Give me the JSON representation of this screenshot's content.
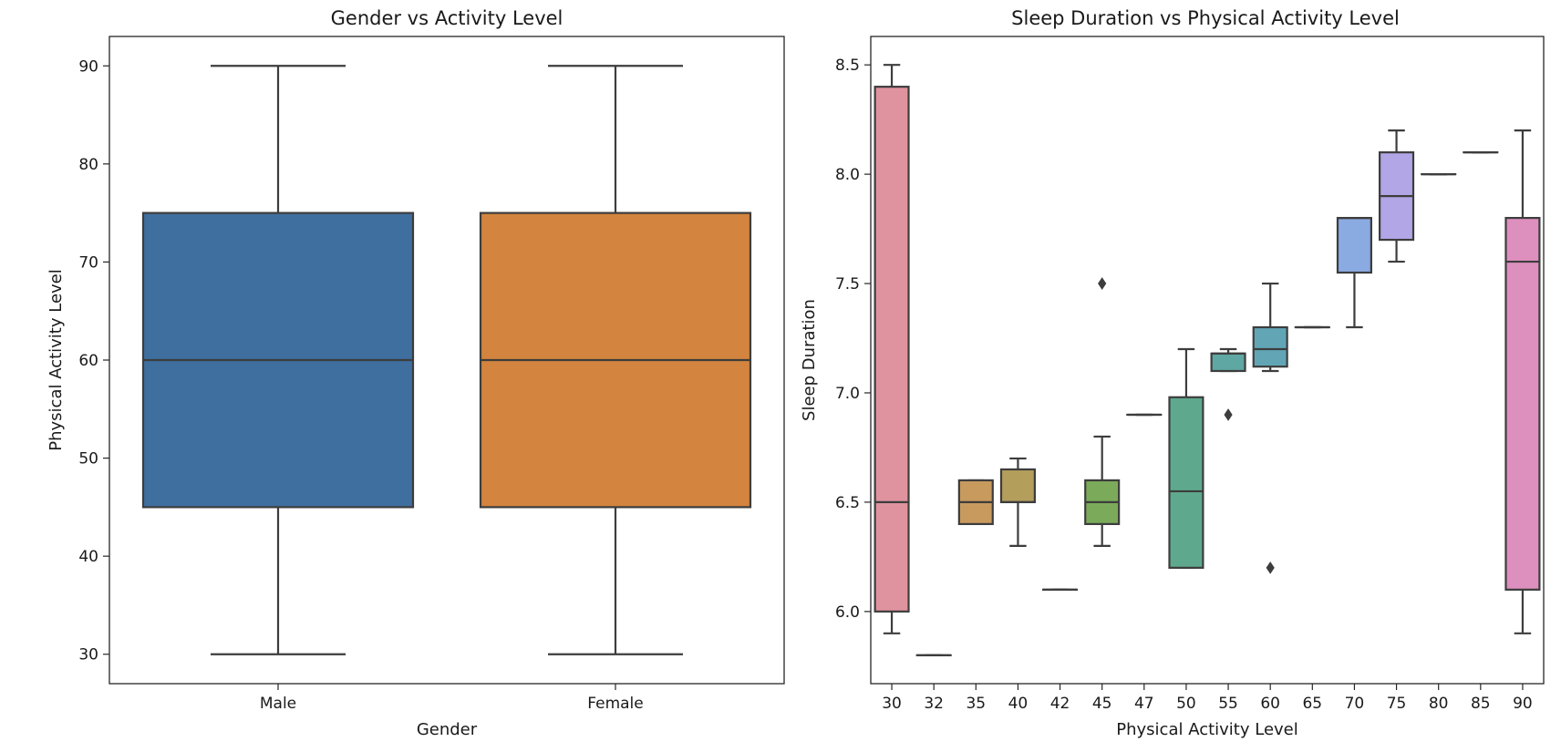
{
  "chart_data": [
    {
      "type": "box",
      "title": "Gender vs Activity Level",
      "xlabel": "Gender",
      "ylabel": "Physical Activity Level",
      "ylim": [
        27,
        93
      ],
      "yticks": [
        30,
        40,
        50,
        60,
        70,
        80,
        90
      ],
      "categories": [
        "Male",
        "Female"
      ],
      "boxes": [
        {
          "category": "Male",
          "whisker_low": 30,
          "q1": 45,
          "median": 60,
          "q3": 75,
          "whisker_high": 90,
          "color": "#3f6f9f",
          "outliers": []
        },
        {
          "category": "Female",
          "whisker_low": 30,
          "q1": 45,
          "median": 60,
          "q3": 75,
          "whisker_high": 90,
          "color": "#d3843e",
          "outliers": []
        }
      ]
    },
    {
      "type": "box",
      "title": "Sleep Duration vs Physical Activity Level",
      "xlabel": "Physical Activity Level",
      "ylabel": "Sleep Duration",
      "ylim": [
        5.67,
        8.63
      ],
      "yticks": [
        "6.0",
        "6.5",
        "7.0",
        "7.5",
        "8.0",
        "8.5"
      ],
      "categories": [
        "30",
        "32",
        "35",
        "40",
        "42",
        "45",
        "47",
        "50",
        "55",
        "60",
        "65",
        "70",
        "75",
        "80",
        "85",
        "90"
      ],
      "boxes": [
        {
          "category": "30",
          "whisker_low": 5.9,
          "q1": 6.0,
          "median": 6.5,
          "q3": 8.4,
          "whisker_high": 8.5,
          "color": "#df939e",
          "outliers": []
        },
        {
          "category": "32",
          "whisker_low": 5.8,
          "q1": 5.8,
          "median": 5.8,
          "q3": 5.8,
          "whisker_high": 5.8,
          "color": "#dc9b7e",
          "outliers": []
        },
        {
          "category": "35",
          "whisker_low": 6.4,
          "q1": 6.4,
          "median": 6.5,
          "q3": 6.6,
          "whisker_high": 6.6,
          "color": "#c89a5d",
          "outliers": []
        },
        {
          "category": "40",
          "whisker_low": 6.3,
          "q1": 6.5,
          "median": 6.5,
          "q3": 6.65,
          "whisker_high": 6.7,
          "color": "#b49e5c",
          "outliers": []
        },
        {
          "category": "42",
          "whisker_low": 6.1,
          "q1": 6.1,
          "median": 6.1,
          "q3": 6.1,
          "whisker_high": 6.1,
          "color": "#9aa55c",
          "outliers": []
        },
        {
          "category": "45",
          "whisker_low": 6.3,
          "q1": 6.4,
          "median": 6.5,
          "q3": 6.6,
          "whisker_high": 6.8,
          "color": "#7bab5a",
          "outliers": [
            7.5
          ]
        },
        {
          "category": "47",
          "whisker_low": 6.9,
          "q1": 6.9,
          "median": 6.9,
          "q3": 6.9,
          "whisker_high": 6.9,
          "color": "#5cab74",
          "outliers": []
        },
        {
          "category": "50",
          "whisker_low": 6.2,
          "q1": 6.2,
          "median": 6.55,
          "q3": 6.98,
          "whisker_high": 7.2,
          "color": "#5ea98e",
          "outliers": []
        },
        {
          "category": "55",
          "whisker_low": 7.1,
          "q1": 7.1,
          "median": 7.18,
          "q3": 7.18,
          "whisker_high": 7.2,
          "color": "#5fa7a2",
          "outliers": [
            6.9
          ]
        },
        {
          "category": "60",
          "whisker_low": 7.1,
          "q1": 7.12,
          "median": 7.2,
          "q3": 7.3,
          "whisker_high": 7.5,
          "color": "#62a6b6",
          "outliers": [
            6.2
          ]
        },
        {
          "category": "65",
          "whisker_low": 7.3,
          "q1": 7.3,
          "median": 7.3,
          "q3": 7.3,
          "whisker_high": 7.3,
          "color": "#6aa6cd",
          "outliers": []
        },
        {
          "category": "70",
          "whisker_low": 7.3,
          "q1": 7.55,
          "median": 7.8,
          "q3": 7.8,
          "whisker_high": 7.8,
          "color": "#8aaae2",
          "outliers": []
        },
        {
          "category": "75",
          "whisker_low": 7.6,
          "q1": 7.7,
          "median": 7.9,
          "q3": 8.1,
          "whisker_high": 8.2,
          "color": "#b2a6e6",
          "outliers": []
        },
        {
          "category": "80",
          "whisker_low": 8.0,
          "q1": 8.0,
          "median": 8.0,
          "q3": 8.0,
          "whisker_high": 8.0,
          "color": "#caa0e0",
          "outliers": []
        },
        {
          "category": "85",
          "whisker_low": 8.1,
          "q1": 8.1,
          "median": 8.1,
          "q3": 8.1,
          "whisker_high": 8.1,
          "color": "#d99ad6",
          "outliers": []
        },
        {
          "category": "90",
          "whisker_low": 5.9,
          "q1": 6.1,
          "median": 7.6,
          "q3": 7.8,
          "whisker_high": 8.2,
          "color": "#dd8fbe",
          "outliers": []
        }
      ]
    }
  ]
}
